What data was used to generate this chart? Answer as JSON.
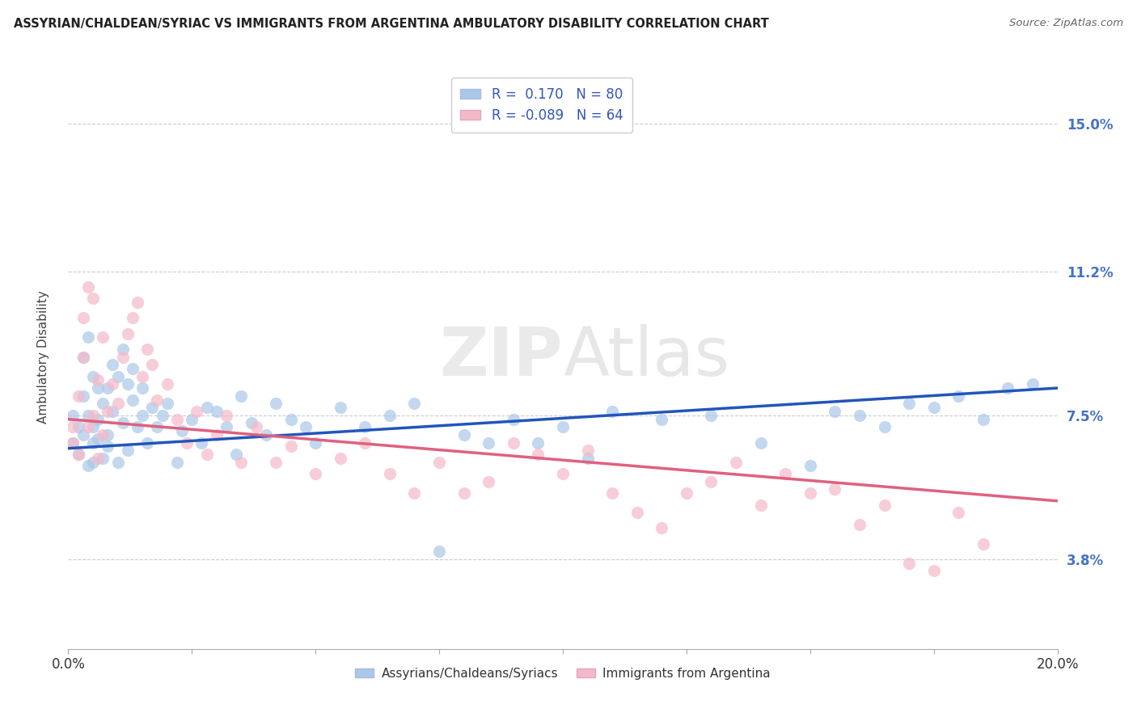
{
  "title": "ASSYRIAN/CHALDEAN/SYRIAC VS IMMIGRANTS FROM ARGENTINA AMBULATORY DISABILITY CORRELATION CHART",
  "source": "Source: ZipAtlas.com",
  "ylabel": "Ambulatory Disability",
  "ytick_labels": [
    "3.8%",
    "7.5%",
    "11.2%",
    "15.0%"
  ],
  "ytick_values": [
    0.038,
    0.075,
    0.112,
    0.15
  ],
  "xmin": 0.0,
  "xmax": 0.2,
  "ymin": 0.015,
  "ymax": 0.165,
  "series1": {
    "name": "Assyrians/Chaldeans/Syriacs",
    "R": 0.17,
    "N": 80,
    "color": "#aac8e8",
    "line_color": "#2255bb",
    "x": [
      0.001,
      0.001,
      0.002,
      0.002,
      0.003,
      0.003,
      0.003,
      0.004,
      0.004,
      0.004,
      0.005,
      0.005,
      0.005,
      0.005,
      0.006,
      0.006,
      0.006,
      0.007,
      0.007,
      0.008,
      0.008,
      0.008,
      0.009,
      0.009,
      0.01,
      0.01,
      0.011,
      0.011,
      0.012,
      0.012,
      0.013,
      0.013,
      0.014,
      0.015,
      0.015,
      0.016,
      0.017,
      0.018,
      0.019,
      0.02,
      0.022,
      0.023,
      0.025,
      0.027,
      0.028,
      0.03,
      0.032,
      0.034,
      0.035,
      0.037,
      0.04,
      0.042,
      0.045,
      0.048,
      0.05,
      0.055,
      0.06,
      0.065,
      0.07,
      0.075,
      0.08,
      0.085,
      0.09,
      0.095,
      0.1,
      0.105,
      0.11,
      0.12,
      0.13,
      0.14,
      0.15,
      0.155,
      0.16,
      0.165,
      0.17,
      0.175,
      0.18,
      0.185,
      0.19,
      0.195
    ],
    "y": [
      0.068,
      0.075,
      0.072,
      0.065,
      0.07,
      0.08,
      0.09,
      0.062,
      0.075,
      0.095,
      0.068,
      0.072,
      0.063,
      0.085,
      0.069,
      0.074,
      0.082,
      0.064,
      0.078,
      0.067,
      0.082,
      0.07,
      0.076,
      0.088,
      0.063,
      0.085,
      0.073,
      0.092,
      0.066,
      0.083,
      0.079,
      0.087,
      0.072,
      0.082,
      0.075,
      0.068,
      0.077,
      0.072,
      0.075,
      0.078,
      0.063,
      0.071,
      0.074,
      0.068,
      0.077,
      0.076,
      0.072,
      0.065,
      0.08,
      0.073,
      0.07,
      0.078,
      0.074,
      0.072,
      0.068,
      0.077,
      0.072,
      0.075,
      0.078,
      0.04,
      0.07,
      0.068,
      0.074,
      0.068,
      0.072,
      0.064,
      0.076,
      0.074,
      0.075,
      0.068,
      0.062,
      0.076,
      0.075,
      0.072,
      0.078,
      0.077,
      0.08,
      0.074,
      0.082,
      0.083
    ],
    "trend_x": [
      0.0,
      0.2
    ],
    "trend_y_start": 0.0665,
    "trend_y_end": 0.082
  },
  "series2": {
    "name": "Immigrants from Argentina",
    "R": -0.089,
    "N": 64,
    "color": "#f5b8c8",
    "line_color": "#e06080",
    "x": [
      0.001,
      0.001,
      0.002,
      0.002,
      0.003,
      0.003,
      0.004,
      0.004,
      0.005,
      0.005,
      0.006,
      0.006,
      0.007,
      0.007,
      0.008,
      0.009,
      0.01,
      0.011,
      0.012,
      0.013,
      0.014,
      0.015,
      0.016,
      0.017,
      0.018,
      0.02,
      0.022,
      0.024,
      0.026,
      0.028,
      0.03,
      0.032,
      0.035,
      0.038,
      0.042,
      0.045,
      0.05,
      0.055,
      0.06,
      0.065,
      0.07,
      0.075,
      0.08,
      0.085,
      0.09,
      0.095,
      0.1,
      0.105,
      0.11,
      0.115,
      0.12,
      0.125,
      0.13,
      0.135,
      0.14,
      0.145,
      0.15,
      0.155,
      0.16,
      0.165,
      0.17,
      0.175,
      0.18,
      0.185
    ],
    "y": [
      0.068,
      0.072,
      0.065,
      0.08,
      0.09,
      0.1,
      0.072,
      0.108,
      0.075,
      0.105,
      0.064,
      0.084,
      0.07,
      0.095,
      0.076,
      0.083,
      0.078,
      0.09,
      0.096,
      0.1,
      0.104,
      0.085,
      0.092,
      0.088,
      0.079,
      0.083,
      0.074,
      0.068,
      0.076,
      0.065,
      0.07,
      0.075,
      0.063,
      0.072,
      0.063,
      0.067,
      0.06,
      0.064,
      0.068,
      0.06,
      0.055,
      0.063,
      0.055,
      0.058,
      0.068,
      0.065,
      0.06,
      0.066,
      0.055,
      0.05,
      0.046,
      0.055,
      0.058,
      0.063,
      0.052,
      0.06,
      0.055,
      0.056,
      0.047,
      0.052,
      0.037,
      0.035,
      0.05,
      0.042
    ],
    "trend_x": [
      0.0,
      0.2
    ],
    "trend_y_start": 0.074,
    "trend_y_end": 0.053
  },
  "watermark": "ZIPAtlas",
  "xtick_positions": [
    0.0,
    0.025,
    0.05,
    0.075,
    0.1,
    0.125,
    0.15,
    0.175,
    0.2
  ],
  "xtick_show_labels": [
    true,
    false,
    false,
    false,
    false,
    false,
    false,
    false,
    true
  ]
}
